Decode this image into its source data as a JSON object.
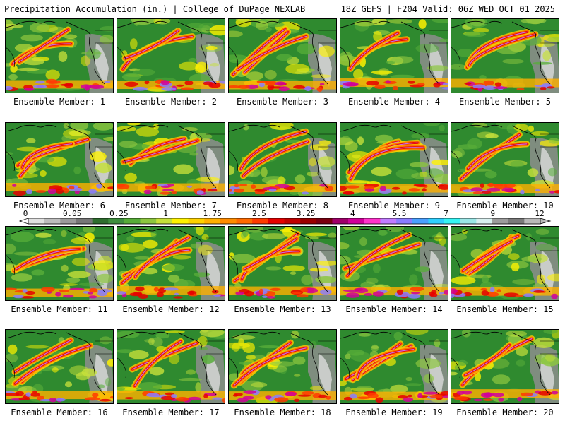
{
  "header": {
    "left_title": "Precipitation Accumulation (in.) | College of DuPage NEXLAB",
    "right_title": "18Z GEFS | F204 Valid: 06Z WED OCT 01 2025"
  },
  "panels": [
    {
      "label": "Ensemble Member: 1"
    },
    {
      "label": "Ensemble Member: 2"
    },
    {
      "label": "Ensemble Member: 3"
    },
    {
      "label": "Ensemble Member: 4"
    },
    {
      "label": "Ensemble Member: 5"
    },
    {
      "label": "Ensemble Member: 6"
    },
    {
      "label": "Ensemble Member: 7"
    },
    {
      "label": "Ensemble Member: 8"
    },
    {
      "label": "Ensemble Member: 9"
    },
    {
      "label": "Ensemble Member: 10"
    },
    {
      "label": "Ensemble Member: 11"
    },
    {
      "label": "Ensemble Member: 12"
    },
    {
      "label": "Ensemble Member: 13"
    },
    {
      "label": "Ensemble Member: 14"
    },
    {
      "label": "Ensemble Member: 15"
    },
    {
      "label": "Ensemble Member: 16"
    },
    {
      "label": "Ensemble Member: 17"
    },
    {
      "label": "Ensemble Member: 18"
    },
    {
      "label": "Ensemble Member: 19"
    },
    {
      "label": "Ensemble Member: 20"
    }
  ],
  "colorbar": {
    "tick_labels": [
      "0",
      "0.05",
      "0.25",
      "1",
      "1.75",
      "2.5",
      "3.25",
      "4",
      "5.5",
      "7",
      "9",
      "12"
    ],
    "colors": [
      "#e0e0e0",
      "#bdbdbd",
      "#9a9a9a",
      "#777777",
      "#2f6e2f",
      "#3f8f3f",
      "#57ad39",
      "#8cc63f",
      "#c6e03a",
      "#fff200",
      "#ffd200",
      "#ffb000",
      "#ff8c00",
      "#ff6a00",
      "#ff3b00",
      "#e60000",
      "#c00000",
      "#9a0000",
      "#7a0010",
      "#a0006a",
      "#d1009b",
      "#ff33cc",
      "#c17cff",
      "#8a7cff",
      "#4aa0ff",
      "#2fd0ff",
      "#36f5f5",
      "#9be7e7",
      "#d9f0f0",
      "#9c9c9c",
      "#7a7a7a",
      "#b9b9b9"
    ]
  }
}
